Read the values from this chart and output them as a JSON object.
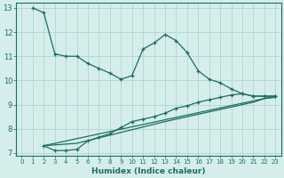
{
  "xlabel": "Humidex (Indice chaleur)",
  "bg_color": "#d5eeec",
  "grid_color": "#b8d8d4",
  "line_color": "#1a6e60",
  "xlim": [
    -0.5,
    23.5
  ],
  "ylim": [
    6.9,
    13.2
  ],
  "yticks": [
    7,
    8,
    9,
    10,
    11,
    12,
    13
  ],
  "xticks": [
    0,
    1,
    2,
    3,
    4,
    5,
    6,
    7,
    8,
    9,
    10,
    11,
    12,
    13,
    14,
    15,
    16,
    17,
    18,
    19,
    20,
    21,
    22,
    23
  ],
  "line1_x": [
    1,
    2,
    3,
    4,
    5,
    6,
    7,
    8,
    9,
    10,
    11,
    12,
    13,
    14,
    15,
    16,
    17,
    18,
    19,
    20,
    21,
    22,
    23
  ],
  "line1_y": [
    13.0,
    12.8,
    11.1,
    11.0,
    11.0,
    10.7,
    10.5,
    10.3,
    10.05,
    10.2,
    11.3,
    11.55,
    11.9,
    11.65,
    11.15,
    10.4,
    10.05,
    9.9,
    9.65,
    9.45,
    9.35,
    9.35,
    9.35
  ],
  "line2_x": [
    2,
    3,
    4,
    5,
    6,
    7,
    8,
    9,
    10,
    11,
    12,
    13,
    14,
    15,
    16,
    17,
    18,
    19,
    20,
    21,
    22,
    23
  ],
  "line2_y": [
    7.3,
    7.1,
    7.1,
    7.15,
    7.5,
    7.65,
    7.8,
    8.05,
    8.3,
    8.4,
    8.5,
    8.65,
    8.85,
    8.95,
    9.1,
    9.2,
    9.3,
    9.4,
    9.45,
    9.35,
    9.35,
    9.35
  ],
  "line3_x": [
    2,
    5,
    9,
    13,
    17,
    21,
    22,
    23
  ],
  "line3_y": [
    7.3,
    7.4,
    7.85,
    8.3,
    8.7,
    9.1,
    9.25,
    9.3
  ],
  "line4_x": [
    2,
    23
  ],
  "line4_y": [
    7.3,
    9.35
  ]
}
